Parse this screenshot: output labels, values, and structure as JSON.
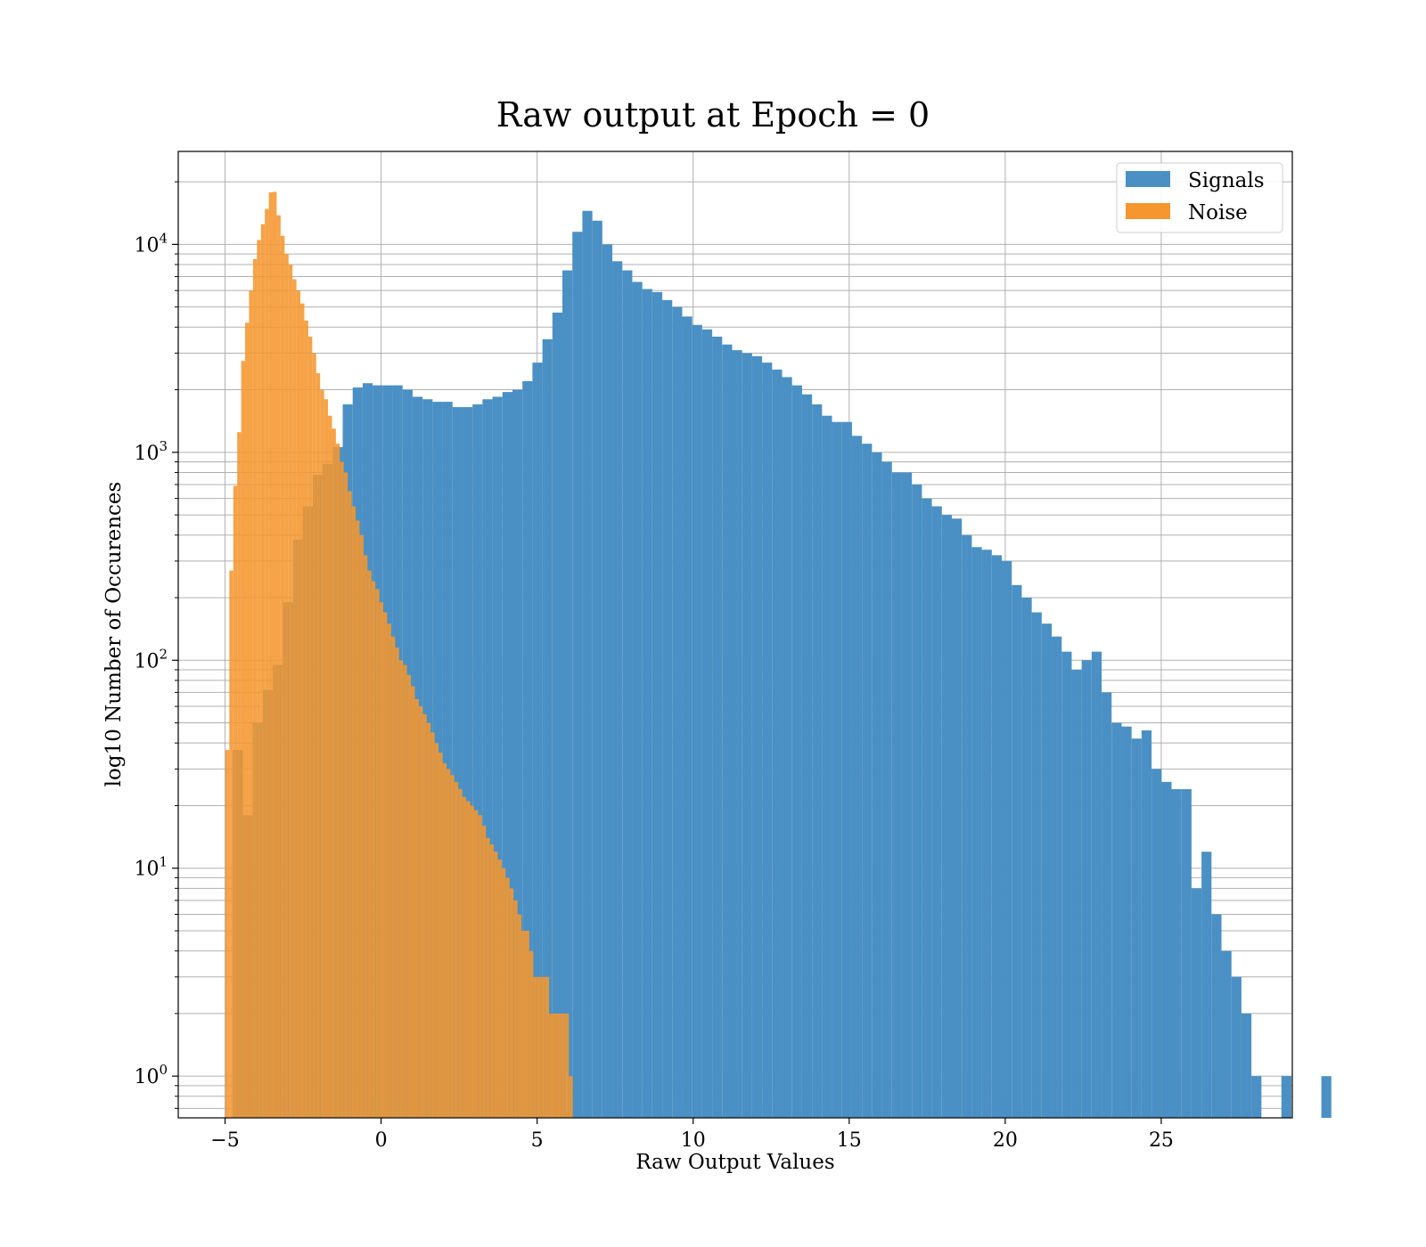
{
  "chart_data": {
    "type": "bar",
    "title": "Raw output at Epoch = 0",
    "xlabel": "Raw Output Values",
    "ylabel": "log10 Number of Occurences",
    "xlim": [
      -6.5,
      29.2
    ],
    "ylim": [
      0.63,
      28000
    ],
    "yscale": "log",
    "x_ticks": [
      -5,
      0,
      5,
      10,
      15,
      20,
      25
    ],
    "x_tick_labels": [
      "−5",
      "0",
      "5",
      "10",
      "15",
      "20",
      "25"
    ],
    "y_ticks": [
      {
        "base": "10",
        "exp": "0",
        "value": 1
      },
      {
        "base": "10",
        "exp": "1",
        "value": 10
      },
      {
        "base": "10",
        "exp": "2",
        "value": 100
      },
      {
        "base": "10",
        "exp": "3",
        "value": 1000
      },
      {
        "base": "10",
        "exp": "4",
        "value": 10000
      }
    ],
    "grid": true,
    "legend_position": "top-right",
    "series": [
      {
        "name": "Signals",
        "color": "#4a90c4",
        "bin_start": -4.75,
        "bin_width": 0.32,
        "values": [
          37,
          18,
          50,
          72,
          95,
          190,
          380,
          550,
          780,
          880,
          1060,
          1700,
          2050,
          2150,
          2100,
          2100,
          2100,
          2000,
          1850,
          1800,
          1750,
          1750,
          1650,
          1650,
          1700,
          1800,
          1850,
          1950,
          2000,
          2200,
          2700,
          3500,
          4700,
          7500,
          11500,
          14500,
          13000,
          10000,
          8300,
          7500,
          6600,
          6100,
          5900,
          5400,
          5000,
          4500,
          4100,
          3900,
          3600,
          3300,
          3100,
          3000,
          2900,
          2700,
          2500,
          2300,
          2100,
          1900,
          1700,
          1500,
          1400,
          1400,
          1200,
          1100,
          1000,
          900,
          800,
          800,
          700,
          600,
          550,
          500,
          480,
          400,
          350,
          340,
          320,
          300,
          230,
          200,
          170,
          150,
          130,
          110,
          90,
          100,
          110,
          70,
          50,
          48,
          42,
          46,
          30,
          26,
          24,
          24,
          8,
          12,
          6,
          4,
          3,
          2,
          1,
          0,
          0,
          1,
          0,
          0,
          0,
          1
        ]
      },
      {
        "name": "Noise",
        "color": "#f5962f",
        "bin_start": -4.99,
        "bin_width": 0.1265,
        "values": [
          37,
          270,
          690,
          1250,
          2750,
          4200,
          6000,
          8500,
          10500,
          12500,
          14800,
          17800,
          17900,
          13800,
          11000,
          9000,
          8000,
          6800,
          6000,
          5200,
          4300,
          3600,
          3000,
          2400,
          2000,
          1800,
          1500,
          1300,
          1100,
          900,
          800,
          650,
          550,
          470,
          400,
          320,
          270,
          240,
          220,
          190,
          170,
          150,
          130,
          115,
          100,
          95,
          85,
          75,
          65,
          60,
          55,
          50,
          45,
          40,
          36,
          32,
          30,
          28,
          26,
          24,
          22,
          21,
          20,
          19,
          18,
          16,
          14,
          13,
          12,
          11,
          10,
          9,
          8,
          7,
          6,
          5,
          5,
          4,
          3,
          3,
          3,
          3,
          2,
          2,
          2,
          2,
          2,
          1
        ]
      }
    ]
  }
}
